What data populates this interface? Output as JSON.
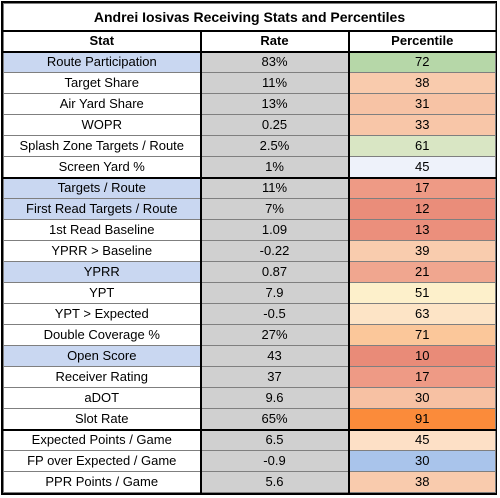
{
  "title": "Andrei Iosivas Receiving Stats and Percentiles",
  "headers": {
    "stat": "Stat",
    "rate": "Rate",
    "percentile": "Percentile"
  },
  "colors": {
    "highlight": "#c9d7f1",
    "rate_bg": "#d0d0d0"
  },
  "rows": [
    {
      "stat": "Route Participation",
      "rate": "83%",
      "percentile": "72",
      "highlight": true,
      "pct_color": "#b6d7a8"
    },
    {
      "stat": "Target Share",
      "rate": "11%",
      "percentile": "38",
      "highlight": false,
      "pct_color": "#f9cbad"
    },
    {
      "stat": "Air Yard Share",
      "rate": "13%",
      "percentile": "31",
      "highlight": false,
      "pct_color": "#f7c3a5"
    },
    {
      "stat": "WOPR",
      "rate": "0.25",
      "percentile": "33",
      "highlight": false,
      "pct_color": "#f8c6a8"
    },
    {
      "stat": "Splash Zone Targets / Route",
      "rate": "2.5%",
      "percentile": "61",
      "highlight": false,
      "pct_color": "#d9e6c4"
    },
    {
      "stat": "Screen Yard %",
      "rate": "1%",
      "percentile": "45",
      "highlight": false,
      "pct_color": "#eef2fa"
    },
    {
      "stat": "Targets / Route",
      "rate": "11%",
      "percentile": "17",
      "highlight": true,
      "pct_color": "#ee9a85"
    },
    {
      "stat": "First Read Targets / Route",
      "rate": "7%",
      "percentile": "12",
      "highlight": true,
      "pct_color": "#ea8d7a"
    },
    {
      "stat": "1st Read Baseline",
      "rate": "1.09",
      "percentile": "13",
      "highlight": false,
      "pct_color": "#eb8f7c"
    },
    {
      "stat": "YPRR > Baseline",
      "rate": "-0.22",
      "percentile": "39",
      "highlight": false,
      "pct_color": "#f9ccae"
    },
    {
      "stat": "YPRR",
      "rate": "0.87",
      "percentile": "21",
      "highlight": true,
      "pct_color": "#f0a68f"
    },
    {
      "stat": "YPT",
      "rate": "7.9",
      "percentile": "51",
      "highlight": false,
      "pct_color": "#fdf0cb"
    },
    {
      "stat": "YPT > Expected",
      "rate": "-0.5",
      "percentile": "63",
      "highlight": false,
      "pct_color": "#fde4c6"
    },
    {
      "stat": "Double Coverage %",
      "rate": "27%",
      "percentile": "71",
      "highlight": false,
      "pct_color": "#fbc79a"
    },
    {
      "stat": "Open Score",
      "rate": "43",
      "percentile": "10",
      "highlight": true,
      "pct_color": "#e98b78"
    },
    {
      "stat": "Receiver Rating",
      "rate": "37",
      "percentile": "17",
      "highlight": false,
      "pct_color": "#ee9a85"
    },
    {
      "stat": "aDOT",
      "rate": "9.6",
      "percentile": "30",
      "highlight": false,
      "pct_color": "#f7c1a3"
    },
    {
      "stat": "Slot Rate",
      "rate": "65%",
      "percentile": "91",
      "highlight": false,
      "pct_color": "#fb8b3a"
    },
    {
      "stat": "Expected Points / Game",
      "rate": "6.5",
      "percentile": "45",
      "highlight": false,
      "pct_color": "#fde0c6"
    },
    {
      "stat": "FP over Expected / Game",
      "rate": "-0.9",
      "percentile": "30",
      "highlight": false,
      "pct_color": "#a9c4eb"
    },
    {
      "stat": "PPR Points / Game",
      "rate": "5.6",
      "percentile": "38",
      "highlight": false,
      "pct_color": "#f9cbad"
    }
  ]
}
